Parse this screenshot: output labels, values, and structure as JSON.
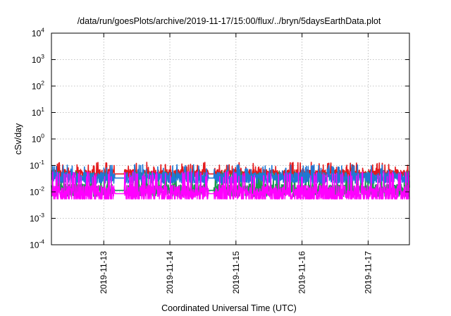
{
  "chart_data": {
    "type": "line",
    "title": "/data/run/goesPlots/archive/2019-11-17/15:00/flux/../bryn/5daysEarthData.plot",
    "xlabel": "Coordinated Universal Time (UTC)",
    "ylabel": "cSv/day",
    "yscale": "log",
    "ylim": [
      0.0001,
      10000
    ],
    "xlim": [
      "2019-11-12T05:00",
      "2019-11-17T15:00"
    ],
    "grid": true,
    "yticks": [
      {
        "base": "10",
        "exp": "4"
      },
      {
        "base": "10",
        "exp": "3"
      },
      {
        "base": "10",
        "exp": "2"
      },
      {
        "base": "10",
        "exp": "1"
      },
      {
        "base": "10",
        "exp": "0"
      },
      {
        "base": "10",
        "exp": "-1"
      },
      {
        "base": "10",
        "exp": "-2"
      },
      {
        "base": "10",
        "exp": "-3"
      },
      {
        "base": "10",
        "exp": "-4"
      }
    ],
    "xticks": [
      "2019-11-13",
      "2019-11-14",
      "2019-11-15",
      "2019-11-16",
      "2019-11-17"
    ],
    "gaps": [
      [
        "2019-11-13T04:00",
        "2019-11-13T07:30"
      ],
      [
        "2019-11-14T14:00",
        "2019-11-14T16:00"
      ]
    ],
    "series": [
      {
        "color": "#e41a1c",
        "base": 0.05,
        "spread": 0.35,
        "spike": 0.11
      },
      {
        "color": "#1a9850",
        "base": 0.012,
        "spread": 0.5,
        "spike": 0.05
      },
      {
        "color": "#1f78d4",
        "base": 0.035,
        "spread": 0.45,
        "spike": 0.09
      },
      {
        "color": "#ff00ff",
        "base": 0.009,
        "spread": 0.7,
        "spike": 0.05
      }
    ]
  }
}
